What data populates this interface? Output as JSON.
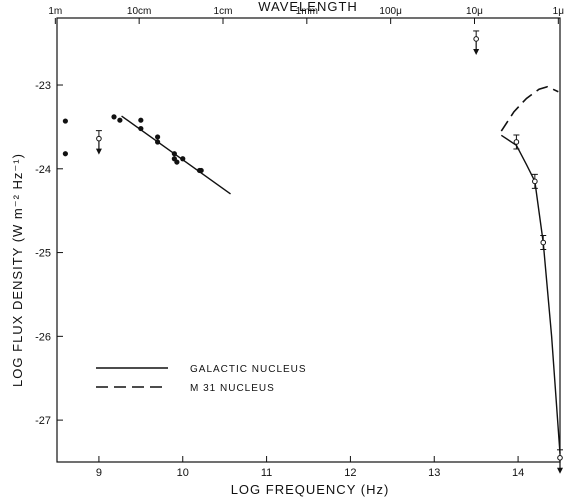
{
  "chart_data": {
    "type": "scatter",
    "title": "",
    "xlabel": "LOG FREQUENCY (Hz)",
    "ylabel": "LOG FLUX DENSITY (W m⁻² Hz⁻¹)",
    "top_axis_label": "WAVELENGTH",
    "xlim": [
      8.5,
      14.5
    ],
    "ylim": [
      -27.5,
      -22.2
    ],
    "x_ticks": [
      "9",
      "10",
      "11",
      "12",
      "13",
      "14"
    ],
    "x_tick_values": [
      9,
      10,
      11,
      12,
      13,
      14
    ],
    "y_ticks": [
      "-23",
      "-24",
      "-25",
      "-26",
      "-27"
    ],
    "y_tick_values": [
      -23,
      -24,
      -25,
      -26,
      -27
    ],
    "top_ticks": [
      "1m",
      "10cm",
      "1cm",
      "1mm",
      "100μ",
      "10μ",
      "1μ"
    ],
    "top_tick_values": [
      8.48,
      9.48,
      10.48,
      11.48,
      12.48,
      13.48,
      14.48
    ],
    "grid": false,
    "legend_position": "lower-left",
    "series": [
      {
        "name": "GALACTIC NUCLEUS",
        "style": "solid",
        "points": [
          [
            8.6,
            -23.43
          ],
          [
            8.6,
            -23.82
          ],
          [
            9.18,
            -23.38
          ],
          [
            9.25,
            -23.42
          ],
          [
            9.5,
            -23.42
          ],
          [
            9.5,
            -23.52
          ],
          [
            9.7,
            -23.62
          ],
          [
            9.7,
            -23.68
          ],
          [
            9.9,
            -23.82
          ],
          [
            9.9,
            -23.88
          ],
          [
            9.93,
            -23.92
          ],
          [
            10.0,
            -23.88
          ],
          [
            10.2,
            -24.02
          ],
          [
            10.22,
            -24.02
          ]
        ],
        "upper_limits": [
          {
            "x": 9.0,
            "y": -23.64
          },
          {
            "x": 13.5,
            "y": -22.45
          },
          {
            "x": 14.5,
            "y": -27.45
          }
        ],
        "error_points": [
          {
            "x": 13.98,
            "y": -23.68
          },
          {
            "x": 14.2,
            "y": -24.15
          },
          {
            "x": 14.3,
            "y": -24.88
          }
        ],
        "fit_radio": [
          [
            9.27,
            -23.37
          ],
          [
            10.57,
            -24.3
          ]
        ],
        "fit_ir": [
          [
            13.8,
            -23.6
          ],
          [
            13.98,
            -23.72
          ],
          [
            14.1,
            -23.95
          ],
          [
            14.2,
            -24.15
          ],
          [
            14.3,
            -24.88
          ],
          [
            14.4,
            -26.0
          ],
          [
            14.5,
            -27.4
          ]
        ]
      },
      {
        "name": "M 31 NUCLEUS",
        "style": "dashed",
        "points": [
          [
            13.8,
            -23.55
          ],
          [
            13.95,
            -23.32
          ],
          [
            14.1,
            -23.16
          ],
          [
            14.25,
            -23.05
          ],
          [
            14.35,
            -23.02
          ],
          [
            14.48,
            -23.08
          ]
        ]
      }
    ]
  }
}
